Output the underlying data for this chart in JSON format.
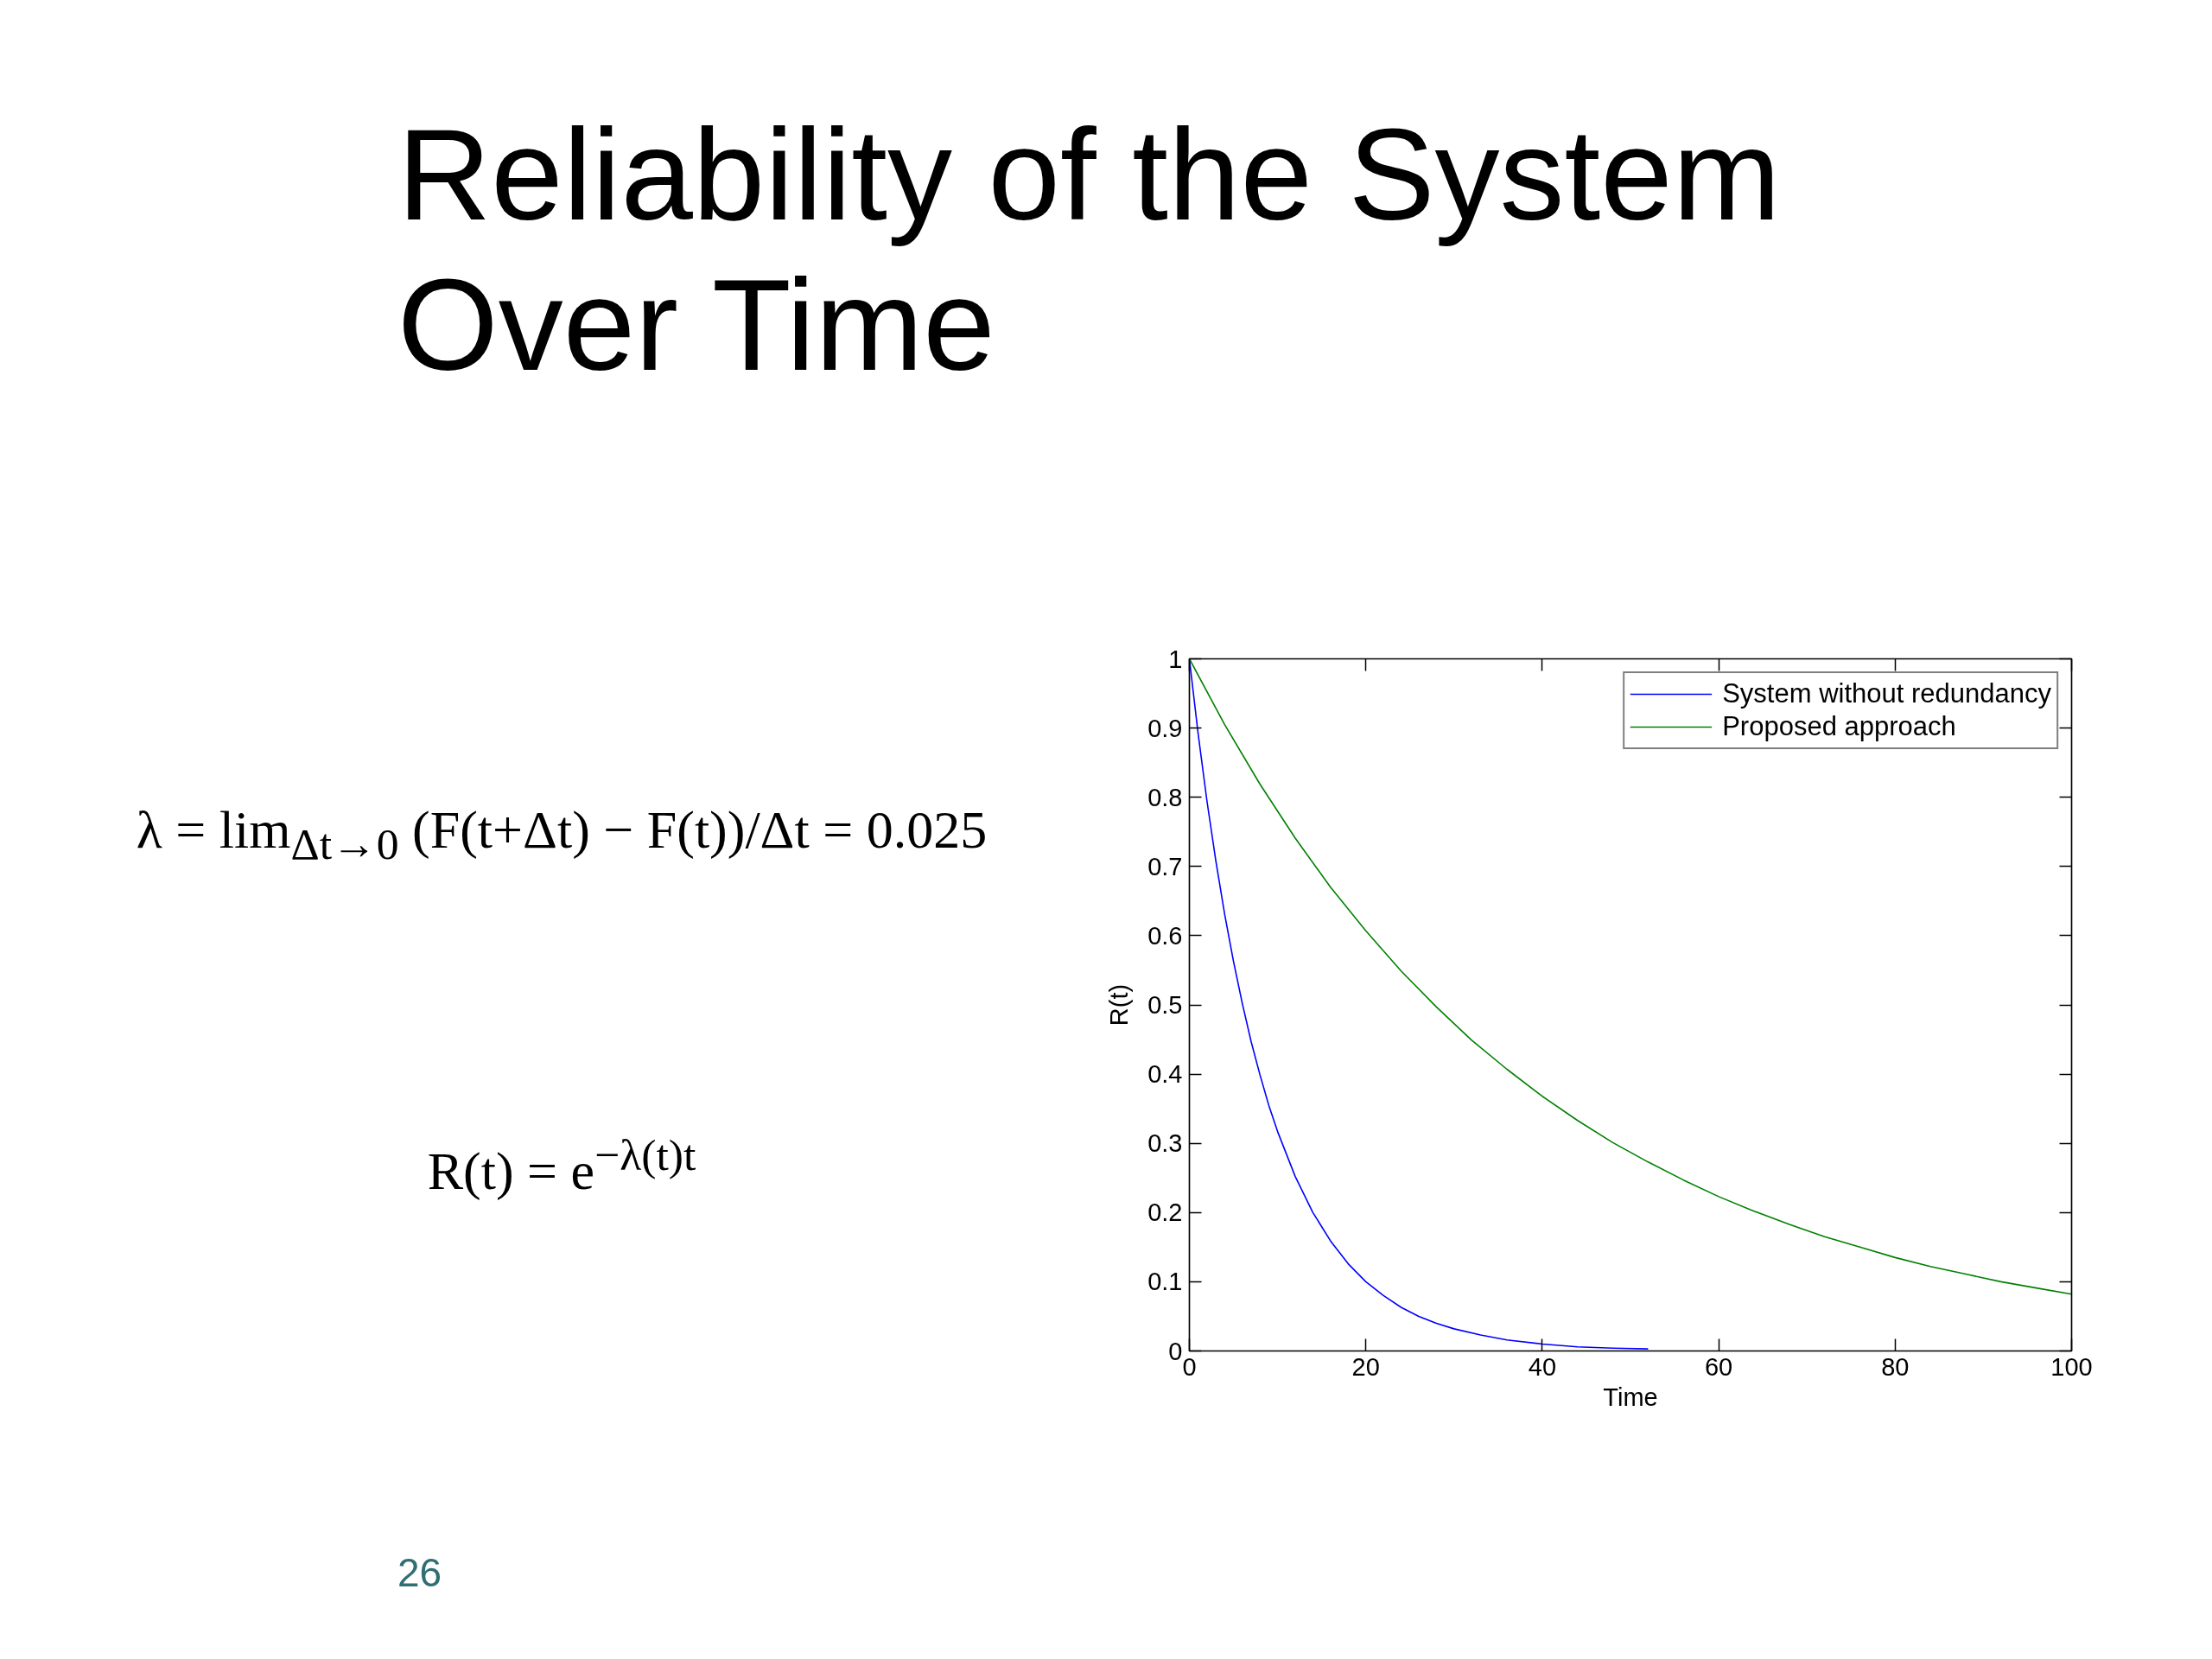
{
  "chart_data": {
    "type": "line",
    "title": "Reliability of the System Over Time",
    "xlabel": "Time",
    "ylabel": "R(t)",
    "xlim": [
      0,
      100
    ],
    "ylim": [
      0,
      1
    ],
    "xticks": [
      0,
      20,
      40,
      60,
      80,
      100
    ],
    "yticks": [
      0,
      0.1,
      0.2,
      0.3,
      0.4,
      0.5,
      0.6,
      0.7,
      0.8,
      0.9,
      1
    ],
    "grid": false,
    "legend": "top right",
    "line_style": "solid",
    "series": [
      {
        "name": "System without redundancy",
        "color": "#0000ff",
        "x": [
          0,
          1,
          2,
          3,
          4,
          5,
          6,
          7,
          8,
          9,
          10,
          12,
          14,
          16,
          18,
          20,
          22,
          24,
          26,
          28,
          30,
          33,
          36,
          40,
          44,
          48,
          52
        ],
        "values": [
          1.0,
          0.891,
          0.794,
          0.708,
          0.631,
          0.563,
          0.502,
          0.447,
          0.399,
          0.355,
          0.317,
          0.252,
          0.2,
          0.159,
          0.126,
          0.1,
          0.08,
          0.063,
          0.05,
          0.04,
          0.032,
          0.023,
          0.016,
          0.01,
          0.006,
          0.004,
          0.003
        ]
      },
      {
        "name": "Proposed approach",
        "color": "#008000",
        "x": [
          0,
          4,
          8,
          12,
          16,
          20,
          24,
          28,
          32,
          36,
          40,
          44,
          48,
          52,
          56,
          60,
          64,
          68,
          72,
          76,
          80,
          84,
          88,
          92,
          96,
          100
        ],
        "values": [
          1.0,
          0.905,
          0.819,
          0.741,
          0.67,
          0.607,
          0.549,
          0.497,
          0.449,
          0.407,
          0.368,
          0.333,
          0.301,
          0.273,
          0.247,
          0.223,
          0.202,
          0.183,
          0.165,
          0.15,
          0.135,
          0.122,
          0.111,
          0.1,
          0.091,
          0.082
        ]
      }
    ],
    "annotations": [
      "λ = lim$_{Δt→0}$ (F(t+Δt) − F(t))/Δt = 0.025",
      "R(t) = e$^{−λ(t)t}$",
      "26"
    ]
  }
}
